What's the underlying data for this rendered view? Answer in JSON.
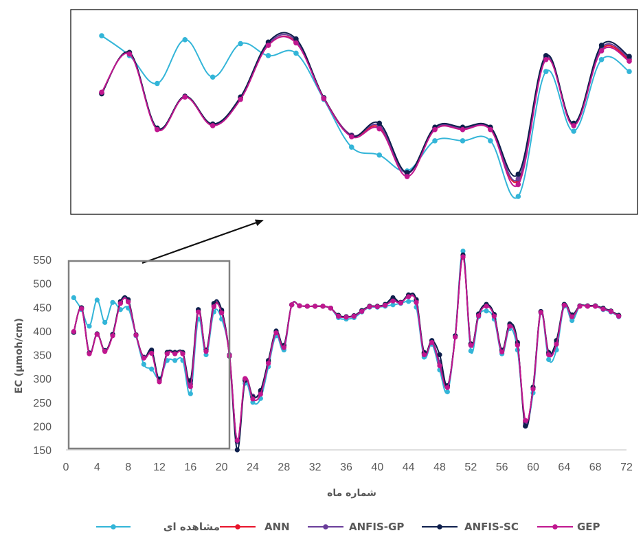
{
  "chart_data": {
    "type": "line",
    "title": "",
    "xlabel": "شماره ماه",
    "ylabel": "EC (µmoh/cm)",
    "xlim": [
      0,
      72
    ],
    "ylim": [
      150,
      550
    ],
    "x_ticks": [
      0,
      4,
      8,
      12,
      16,
      20,
      24,
      28,
      32,
      36,
      40,
      44,
      48,
      52,
      56,
      60,
      64,
      68,
      72
    ],
    "y_ticks": [
      150,
      200,
      250,
      300,
      350,
      400,
      450,
      500,
      550
    ],
    "grid": false,
    "legend_position": "bottom",
    "x": [
      1,
      2,
      3,
      4,
      5,
      6,
      7,
      8,
      9,
      10,
      11,
      12,
      13,
      14,
      15,
      16,
      17,
      18,
      19,
      20,
      21,
      22,
      23,
      24,
      25,
      26,
      27,
      28,
      29,
      30,
      31,
      32,
      33,
      34,
      35,
      36,
      37,
      38,
      39,
      40,
      41,
      42,
      43,
      44,
      45,
      46,
      47,
      48,
      49,
      50,
      51,
      52,
      53,
      54,
      55,
      56,
      57,
      58,
      59,
      60,
      61,
      62,
      63,
      64,
      65,
      66,
      67,
      68,
      69,
      70,
      71
    ],
    "series": [
      {
        "name": "مشاهده ای",
        "color": "#33B5D8",
        "values": [
          470,
          445,
          410,
          465,
          418,
          460,
          445,
          448,
          390,
          330,
          320,
          300,
          338,
          338,
          338,
          268,
          425,
          350,
          440,
          425,
          350,
          170,
          290,
          250,
          258,
          325,
          390,
          360,
          455,
          453,
          452,
          452,
          452,
          448,
          428,
          425,
          428,
          440,
          450,
          450,
          452,
          455,
          458,
          462,
          450,
          345,
          372,
          318,
          272,
          390,
          568,
          358,
          430,
          442,
          425,
          352,
          405,
          360,
          210,
          270,
          438,
          340,
          360,
          452,
          422,
          452,
          452,
          452,
          445,
          440,
          430
        ]
      },
      {
        "name": "ANN",
        "color": "#E8132B",
        "values": [
          398,
          448,
          353,
          393,
          358,
          392,
          458,
          462,
          392,
          345,
          355,
          297,
          353,
          353,
          353,
          288,
          442,
          358,
          453,
          440,
          350,
          168,
          298,
          263,
          272,
          335,
          398,
          368,
          455,
          453,
          452,
          452,
          452,
          448,
          432,
          430,
          432,
          442,
          452,
          452,
          455,
          465,
          460,
          473,
          462,
          353,
          378,
          332,
          283,
          388,
          555,
          372,
          433,
          453,
          433,
          358,
          412,
          372,
          208,
          280,
          440,
          352,
          375,
          455,
          432,
          452,
          452,
          452,
          447,
          442,
          432
        ]
      },
      {
        "name": "ANFIS-GP",
        "color": "#6A3D9A",
        "values": [
          398,
          448,
          353,
          393,
          358,
          392,
          460,
          464,
          392,
          345,
          357,
          297,
          354,
          354,
          354,
          290,
          443,
          358,
          455,
          442,
          350,
          167,
          298,
          263,
          272,
          336,
          398,
          368,
          455,
          453,
          452,
          452,
          452,
          448,
          432,
          430,
          432,
          442,
          452,
          452,
          455,
          467,
          460,
          475,
          464,
          353,
          378,
          334,
          283,
          389,
          558,
          372,
          435,
          455,
          434,
          358,
          413,
          373,
          205,
          280,
          440,
          352,
          376,
          455,
          433,
          452,
          452,
          452,
          447,
          442,
          432
        ]
      },
      {
        "name": "ANFIS-SC",
        "color": "#0E1F4C",
        "values": [
          397,
          449,
          354,
          394,
          359,
          393,
          462,
          466,
          392,
          344,
          360,
          298,
          355,
          355,
          355,
          296,
          445,
          360,
          458,
          444,
          347,
          150,
          296,
          261,
          275,
          338,
          400,
          370,
          455,
          453,
          452,
          452,
          452,
          448,
          433,
          430,
          432,
          443,
          452,
          452,
          456,
          470,
          460,
          476,
          466,
          355,
          380,
          350,
          285,
          390,
          560,
          373,
          436,
          456,
          435,
          360,
          415,
          376,
          200,
          282,
          441,
          355,
          380,
          456,
          434,
          453,
          453,
          453,
          448,
          442,
          433
        ]
      },
      {
        "name": "GEP",
        "color": "#C0178F",
        "values": [
          399,
          447,
          352,
          393,
          357,
          390,
          458,
          461,
          391,
          343,
          353,
          293,
          352,
          352,
          352,
          283,
          440,
          357,
          451,
          438,
          348,
          170,
          300,
          257,
          267,
          332,
          396,
          365,
          455,
          453,
          452,
          452,
          452,
          448,
          431,
          429,
          431,
          441,
          451,
          451,
          454,
          463,
          459,
          472,
          460,
          350,
          376,
          327,
          281,
          387,
          556,
          370,
          432,
          452,
          431,
          356,
          410,
          370,
          212,
          278,
          439,
          350,
          372,
          454,
          430,
          452,
          452,
          452,
          446,
          441,
          431
        ]
      }
    ],
    "highlight_box_x_range": [
      0,
      21
    ],
    "zoom_inset": true
  }
}
